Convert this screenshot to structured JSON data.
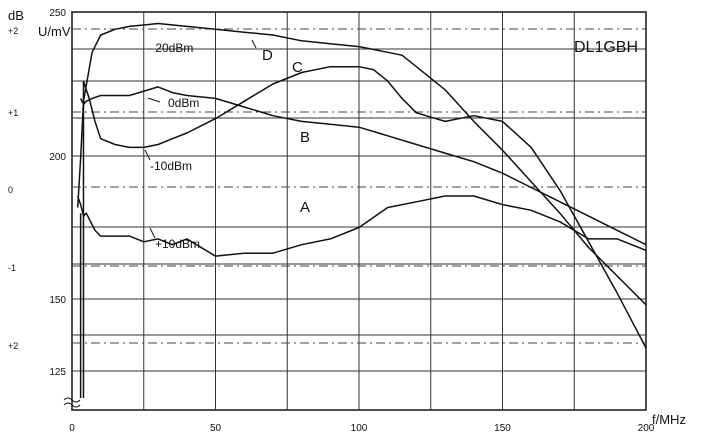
{
  "chart_data": {
    "type": "line",
    "title": "",
    "watermark": "DL1GBH",
    "xlabel": "f/MHz",
    "ylabel": "U/mV",
    "y2label": "dB",
    "xlim": [
      0,
      200
    ],
    "ylim": [
      125,
      250
    ],
    "x_ticks": [
      "0",
      "50",
      "100",
      "150",
      "200"
    ],
    "y_ticks": [
      "125",
      "150",
      "200",
      "250"
    ],
    "db_ticks": [
      "+2",
      "+1",
      "0",
      "-1",
      "+2"
    ],
    "grid": true,
    "legend_position": "inline",
    "series": [
      {
        "name": "D",
        "annotation": "- 20dBm",
        "x": [
          2,
          3,
          4,
          7,
          10,
          15,
          20,
          25,
          30,
          40,
          50,
          60,
          70,
          80,
          90,
          100,
          110,
          115,
          120,
          130,
          140,
          150,
          160,
          170,
          180,
          190,
          200
        ],
        "y": [
          182,
          199,
          219,
          236,
          242,
          244,
          245,
          245.5,
          246,
          245,
          244,
          243,
          242,
          240,
          239,
          238,
          236,
          235,
          231,
          223,
          212,
          202,
          191,
          180,
          168,
          158,
          148
        ]
      },
      {
        "name": "C",
        "annotation": "-10dBm",
        "x": [
          4,
          6,
          8,
          10,
          15,
          20,
          25,
          30,
          35,
          40,
          50,
          60,
          70,
          80,
          90,
          100,
          105,
          110,
          115,
          120,
          130,
          140,
          150,
          160,
          170,
          180,
          190,
          200
        ],
        "y": [
          226,
          220,
          212,
          206,
          204,
          203,
          203,
          204,
          206,
          208,
          213,
          219,
          225,
          229,
          231,
          231,
          230,
          226,
          220,
          215,
          212,
          214,
          212,
          203,
          188,
          170,
          152,
          133
        ]
      },
      {
        "name": "B",
        "annotation": "0dBm",
        "x": [
          3,
          4,
          5,
          7,
          10,
          20,
          30,
          35,
          40,
          50,
          60,
          70,
          80,
          90,
          100,
          110,
          120,
          130,
          140,
          150,
          160,
          170,
          180,
          190,
          200
        ],
        "y": [
          220,
          218,
          219,
          220,
          221,
          221,
          224,
          222,
          221,
          220,
          217,
          214,
          212,
          211,
          210,
          207,
          204,
          201,
          198,
          194,
          189,
          184,
          179,
          174,
          169
        ]
      },
      {
        "name": "A",
        "annotation": "+10dBm",
        "x": [
          2,
          3,
          4,
          5,
          8,
          10,
          15,
          20,
          25,
          30,
          35,
          40,
          50,
          60,
          70,
          80,
          90,
          100,
          110,
          120,
          130,
          140,
          150,
          160,
          170,
          180,
          190,
          200
        ],
        "y": [
          186,
          183,
          179,
          180,
          174,
          172,
          172,
          172,
          170,
          171,
          169,
          171,
          165,
          166,
          166,
          169,
          171,
          175,
          182,
          184,
          186,
          186,
          183,
          181,
          177,
          171,
          171,
          167
        ]
      }
    ]
  }
}
